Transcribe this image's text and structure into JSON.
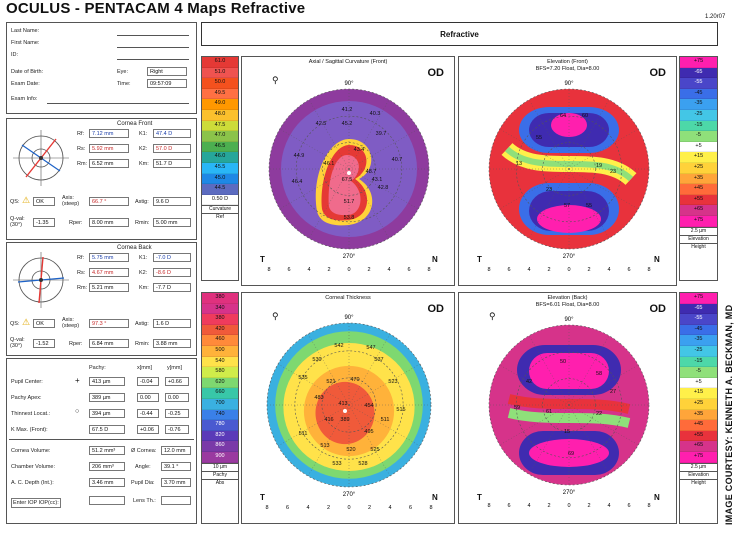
{
  "header": {
    "title": "OCULUS  -  PENTACAM   4 Maps Refractive",
    "version": "1.20r07"
  },
  "tab": {
    "label": "Refractive"
  },
  "patient": {
    "last_name_label": "Last Name:",
    "first_name_label": "First Name:",
    "id_label": "ID:",
    "dob_label": "Date of Birth:",
    "eye_label": "Eye:",
    "eye_value": "Right",
    "exam_date_label": "Exam Date:",
    "time_label": "Time:",
    "time_value": "09:57:09",
    "exam_info_label": "Exam Info:"
  },
  "cornea_front": {
    "title": "Cornea Front",
    "rf_label": "Rf:",
    "rf": "7.12 mm",
    "k1_label": "K1:",
    "k1": "47.4 D",
    "rs_label": "Rs:",
    "rs": "5.92 mm",
    "k2_label": "K2:",
    "k2": "57.0 D",
    "rm_label": "Rm:",
    "rm": "6.52 mm",
    "km_label": "Km:",
    "km": "51.7 D",
    "qs_label": "QS:",
    "qs": "OK",
    "axis_label": "Axis: (steep)",
    "axis": "66.7 °",
    "astig_label": "Astig:",
    "astig": "9.6 D",
    "qval_label": "Q-val: (30°)",
    "qval": "-1.35",
    "rper_label": "Rper:",
    "rper": "8.00 mm",
    "rmin_label": "Rmin:",
    "rmin": "5.00 mm"
  },
  "cornea_back": {
    "title": "Cornea Back",
    "rf_label": "Rf:",
    "rf": "5.75 mm",
    "k1_label": "K1:",
    "k1": "-7.0 D",
    "rs_label": "Rs:",
    "rs": "4.67 mm",
    "k2_label": "K2:",
    "k2": "-8.6 D",
    "rm_label": "Rm:",
    "rm": "5.21 mm",
    "km_label": "Km:",
    "km": "-7.7 D",
    "qs_label": "QS:",
    "qs": "OK",
    "axis_label": "Axis: (steep)",
    "axis": "97.3 °",
    "astig_label": "Astig:",
    "astig": "1.6 D",
    "qval_label": "Q-val: (30°)",
    "qval": "-1.52",
    "rper_label": "Rper:",
    "rper": "6.84 mm",
    "rmin_label": "Rmin:",
    "rmin": "3.88 mm"
  },
  "pachy": {
    "col_pachy": "Pachy:",
    "col_x": "x[mm]",
    "col_y": "y[mm]",
    "rows": [
      {
        "label": "Pupil Center:",
        "pachy": "413 µm",
        "x": "-0.04",
        "y": "+0.66"
      },
      {
        "label": "Pachy Apex:",
        "pachy": "389 µm",
        "x": "0.00",
        "y": "0.00"
      },
      {
        "label": "Thinnest Locat.:",
        "pachy": "394 µm",
        "x": "-0.44",
        "y": "-0.25"
      },
      {
        "label": "K Max. (Front):",
        "pachy": "67.5 D",
        "x": "+0.06",
        "y": "-0.76"
      }
    ]
  },
  "volumes": {
    "cornea_volume_label": "Cornea Volume:",
    "cornea_volume": "51.2 mm³",
    "cornea_dia_label": "Ø Cornea:",
    "cornea_dia": "12.0 mm",
    "chamber_volume_label": "Chamber Volume:",
    "chamber_volume": "206 mm³",
    "angle_label": "Angle:",
    "angle": "39.1 °",
    "acd_label": "A. C. Depth (Int.):",
    "acd": "3.46 mm",
    "pupil_dia_label": "Pupil Dia:",
    "pupil_dia": "3.70 mm",
    "iop_label": "Enter IOP  IOP(cc):",
    "lens_label": "Lens Th.:"
  },
  "scales": {
    "curvature": {
      "values": [
        "61.0",
        "51.0",
        "50.0",
        "49.5",
        "49.0",
        "48.0",
        "47.5",
        "47.0",
        "46.5",
        "46.0",
        "45.5",
        "45.0",
        "44.5",
        "0.50 D"
      ],
      "caption1": "Curvature",
      "caption2": "Ref"
    },
    "elev_front": {
      "values": [
        "+75",
        "-65",
        "-55",
        "-45",
        "-35",
        "-25",
        "-15",
        "-5",
        "+5",
        "+15",
        "+25",
        "+35",
        "+45",
        "+55",
        "+65",
        "+75"
      ],
      "caption1": "2.5 µm",
      "caption2": "Elevation",
      "caption3": "Height"
    },
    "thickness": {
      "values": [
        "380",
        "340",
        "380",
        "420",
        "460",
        "500",
        "540",
        "580",
        "620",
        "660",
        "700",
        "740",
        "780",
        "820",
        "860",
        "900"
      ],
      "caption1": "10 µm",
      "caption2": "Pachy",
      "caption3": "Abs"
    },
    "elev_back": {
      "values": [
        "+75",
        "-65",
        "-55",
        "-45",
        "-35",
        "-25",
        "-15",
        "-5",
        "+5",
        "+15",
        "+25",
        "+35",
        "+45",
        "+55",
        "+65",
        "+75"
      ],
      "caption1": "2.5 µm",
      "caption2": "Elevation",
      "caption3": "Height"
    }
  },
  "maps": {
    "axial": {
      "title": "Axial / Sagittal Curvature (Front)",
      "eye": "OD",
      "t": "T",
      "n": "N",
      "top_angle": "90°",
      "bottom_angle": "270°",
      "values": [
        "41.2",
        "40.3",
        "42.5",
        "45.2",
        "39.7",
        "44.9",
        "40.7",
        "46.1",
        "43.4",
        "46.4",
        "43.1",
        "42.8",
        "48.7",
        "67.5",
        "51.7",
        "53.8"
      ]
    },
    "elev_front": {
      "title": "Elevation (Front)",
      "subtitle": "BFS=7.20 Float, Dia=8.00",
      "eye": "OD",
      "t": "T",
      "n": "N",
      "top_angle": "90°",
      "bottom_angle": "270°",
      "values": [
        "64",
        "60",
        "55",
        "13",
        "19",
        "23",
        "23",
        "57",
        "55"
      ]
    },
    "thickness": {
      "title": "Corneal Thickness",
      "eye": "OD",
      "t": "T",
      "n": "N",
      "top_angle": "90°",
      "bottom_angle": "270°",
      "values": [
        "542",
        "547",
        "530",
        "537",
        "535",
        "521",
        "470",
        "523",
        "483",
        "413",
        "454",
        "416",
        "389",
        "511",
        "515",
        "495",
        "511",
        "513",
        "520",
        "525",
        "533",
        "528"
      ]
    },
    "elev_back": {
      "title": "Elevation (Back)",
      "subtitle": "BFS=6.01 Float, Dia=8.00",
      "eye": "OD",
      "t": "T",
      "n": "N",
      "top_angle": "90°",
      "bottom_angle": "270°",
      "values": [
        "50",
        "58",
        "42",
        "27",
        "59",
        "61",
        "22",
        "15",
        "69"
      ]
    }
  },
  "axis_ticks": [
    "8",
    "6",
    "4",
    "2",
    "0",
    "2",
    "4",
    "6",
    "8"
  ],
  "credit": "IMAGE COURTESY: KENNETH A. BECKMAN, MD",
  "colors": {
    "curv_scale": [
      "#e53935",
      "#ef5350",
      "#f4511e",
      "#ff7043",
      "#ff9800",
      "#fbc02d",
      "#cddc39",
      "#8bc34a",
      "#4caf50",
      "#26a69a",
      "#29b6f6",
      "#1e88e5",
      "#5c6bc0",
      "#ffffff"
    ]
  }
}
